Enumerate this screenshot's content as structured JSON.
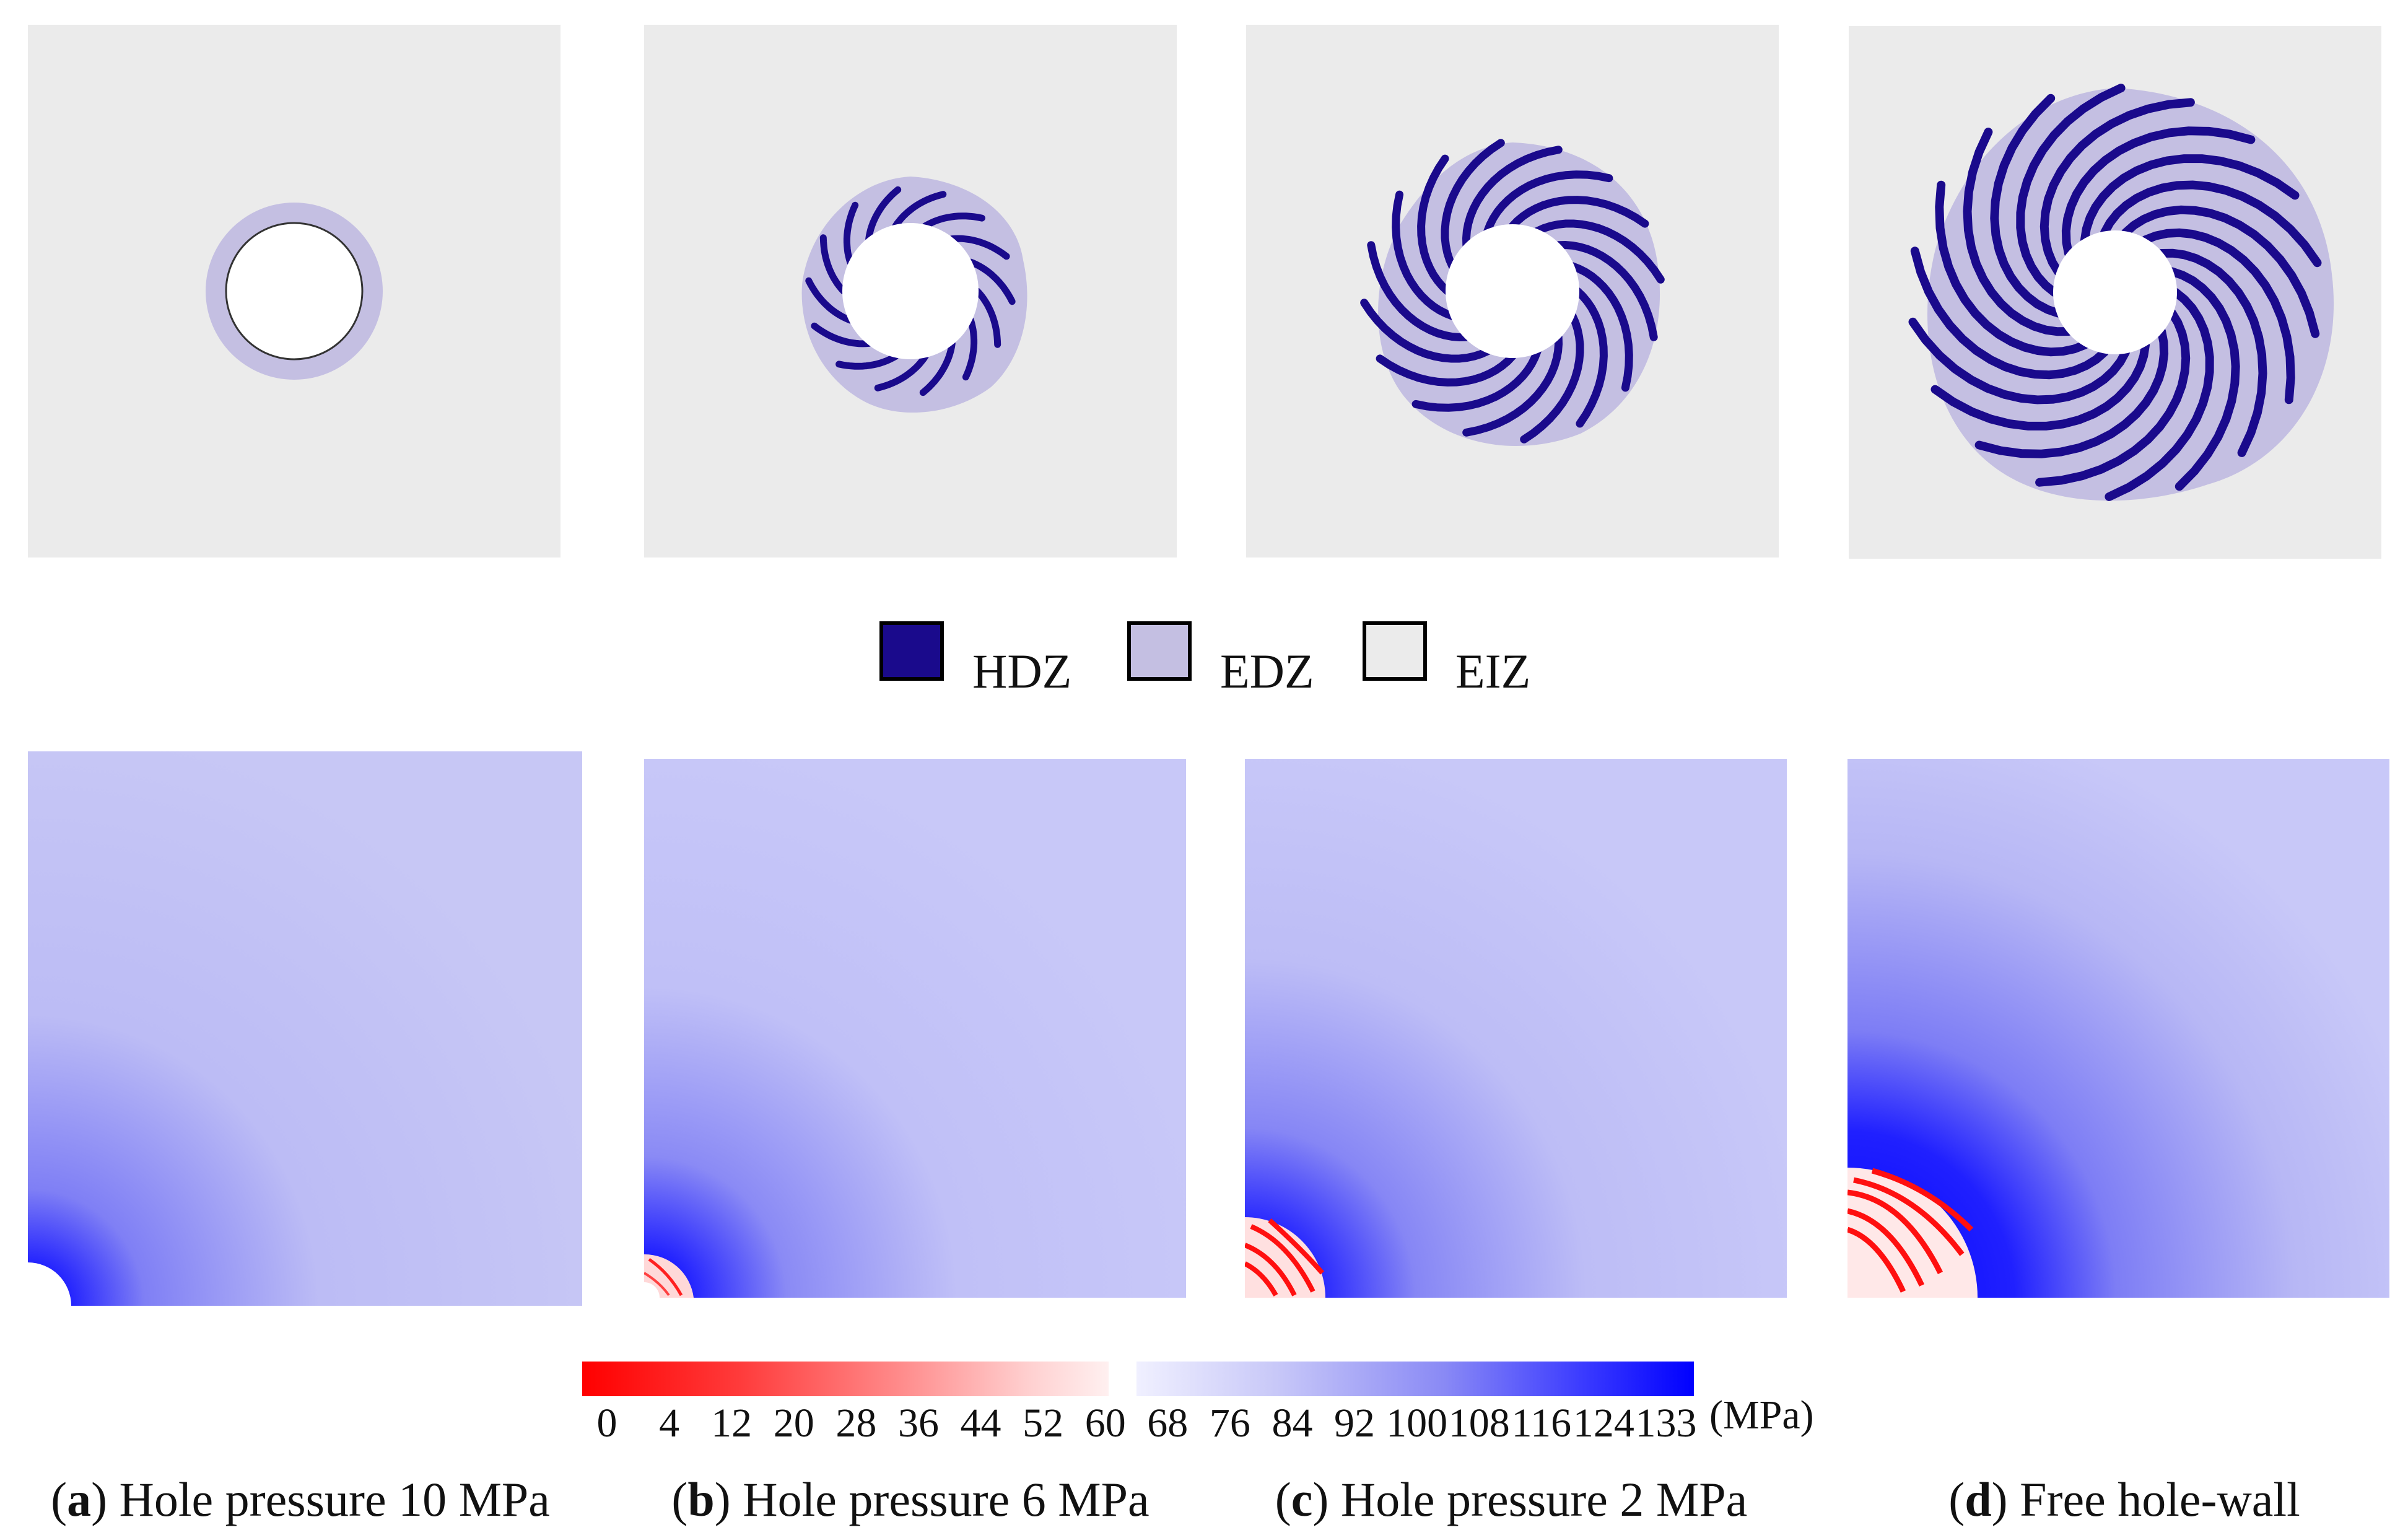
{
  "figure": {
    "legend": [
      {
        "label": "HDZ",
        "color": "#1a0a8c",
        "icon": "hdz-swatch"
      },
      {
        "label": "EDZ",
        "color": "#c4bfe2",
        "icon": "edz-swatch"
      },
      {
        "label": "EIZ",
        "color": "#ebebeb",
        "icon": "eiz-swatch"
      }
    ],
    "colorbar": {
      "unit": "(MPa)",
      "ticks": [
        "0",
        "4",
        "12",
        "20",
        "28",
        "36",
        "44",
        "52",
        "60",
        "68",
        "76",
        "84",
        "92",
        "100",
        "108",
        "116",
        "124",
        "133"
      ],
      "low_color": "#ff0000",
      "high_color": "#0000ff"
    },
    "captions": [
      {
        "letter": "a",
        "text": "Hole pressure 10 MPa"
      },
      {
        "letter": "b",
        "text": "Hole pressure 6 MPa"
      },
      {
        "letter": "c",
        "text": "Hole pressure 2 MPa"
      },
      {
        "letter": "d",
        "text": "Free hole-wall"
      }
    ]
  }
}
